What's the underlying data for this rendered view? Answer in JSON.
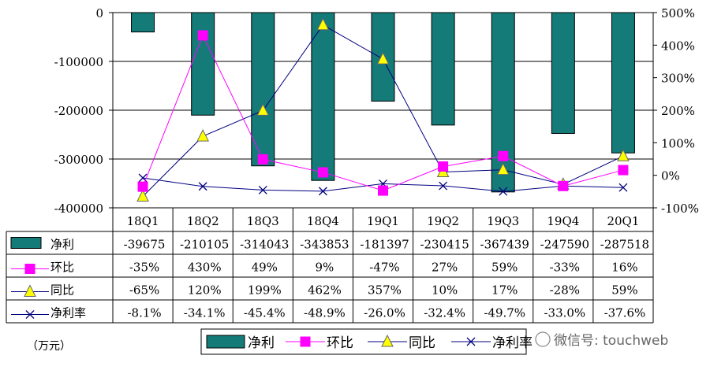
{
  "chart_data": {
    "type": "bar",
    "categories": [
      "18Q1",
      "18Q2",
      "18Q3",
      "18Q4",
      "19Q1",
      "19Q2",
      "19Q3",
      "19Q4",
      "20Q1"
    ],
    "series": [
      {
        "name": "净利",
        "axis": "left",
        "kind": "bar",
        "color": "#147B78",
        "values": [
          -39675,
          -210105,
          -314043,
          -343853,
          -181397,
          -230415,
          -367439,
          -247590,
          -287518
        ],
        "labels": [
          "-39675",
          "-210105",
          "-314043",
          "-343853",
          "-181397",
          "-230415",
          "-367439",
          "-247590",
          "-287518"
        ]
      },
      {
        "name": "环比",
        "axis": "right",
        "kind": "line",
        "color": "#FF00FF",
        "marker": "square",
        "values": [
          -35,
          430,
          49,
          9,
          -47,
          27,
          59,
          -33,
          16
        ],
        "labels": [
          "-35%",
          "430%",
          "49%",
          "9%",
          "-47%",
          "27%",
          "59%",
          "-33%",
          "16%"
        ]
      },
      {
        "name": "同比",
        "axis": "right",
        "kind": "line",
        "color": "#000080",
        "marker": "triangle",
        "marker_color": "#FFFF00",
        "values": [
          -65,
          120,
          199,
          462,
          357,
          10,
          17,
          -28,
          59
        ],
        "labels": [
          "-65%",
          "120%",
          "199%",
          "462%",
          "357%",
          "10%",
          "17%",
          "-28%",
          "59%"
        ]
      },
      {
        "name": "净利率",
        "axis": "right",
        "kind": "line",
        "color": "#000080",
        "marker": "x",
        "values": [
          -8.1,
          -34.1,
          -45.4,
          -48.9,
          -26.0,
          -32.4,
          -49.7,
          -33.0,
          -37.6
        ],
        "labels": [
          "-8.1%",
          "-34.1%",
          "-45.4%",
          "-48.9%",
          "-26.0%",
          "-32.4%",
          "-49.7%",
          "-33.0%",
          "-37.6%"
        ]
      }
    ],
    "y_left": {
      "ylim": [
        -400000,
        0
      ],
      "ticks": [
        "0",
        "-100000",
        "-200000",
        "-300000",
        "-400000"
      ]
    },
    "y_right": {
      "ylim": [
        -100,
        500
      ],
      "ticks": [
        "500%",
        "400%",
        "300%",
        "200%",
        "100%",
        "0%",
        "-100%"
      ]
    },
    "grid": true,
    "legend_position": "bottom",
    "unit_label": "（万元）",
    "legend_labels": [
      "净利",
      "环比",
      "同比",
      "净利率"
    ],
    "watermark": "微信号: touchweb"
  }
}
